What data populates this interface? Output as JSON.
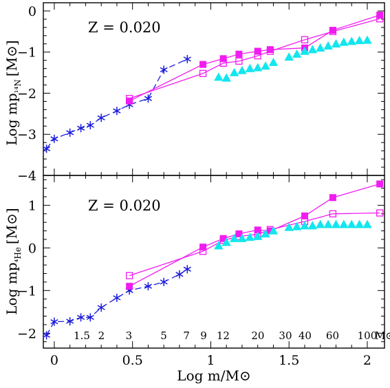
{
  "chart_data": [
    {
      "type": "line",
      "panel": "top",
      "annotation": "Z = 0.020",
      "ylabel": "Log mp",
      "ylabel_sub": "¹⁴N",
      "ylabel_unit": "[M⊙]",
      "xlim": [
        -0.07,
        2.11
      ],
      "ylim": [
        -4,
        0.2
      ],
      "yticks": [
        {
          "v": 0,
          "label": "0"
        },
        {
          "v": -1,
          "label": "−1"
        },
        {
          "v": -2,
          "label": "−2"
        },
        {
          "v": -3,
          "label": "−3"
        },
        {
          "v": -4,
          "label": "−4"
        }
      ],
      "series": [
        {
          "marker": "asterisk",
          "color": "#1a1adb",
          "dash": true,
          "points": [
            [
              -0.05,
              -3.35
            ],
            [
              0.0,
              -3.11
            ],
            [
              0.1,
              -2.96
            ],
            [
              0.17,
              -2.85
            ],
            [
              0.23,
              -2.78
            ],
            [
              0.3,
              -2.6
            ],
            [
              0.4,
              -2.43
            ],
            [
              0.48,
              -2.28
            ],
            [
              0.6,
              -2.13
            ],
            [
              0.7,
              -1.43
            ],
            [
              0.85,
              -1.17
            ]
          ]
        },
        {
          "marker": "square-filled",
          "color": "#f11cf1",
          "dash": false,
          "points": [
            [
              0.48,
              -2.19
            ],
            [
              0.95,
              -1.3
            ],
            [
              1.08,
              -1.16
            ],
            [
              1.18,
              -1.05
            ],
            [
              1.3,
              -0.98
            ],
            [
              1.38,
              -0.94
            ],
            [
              1.6,
              -0.9
            ],
            [
              1.78,
              -0.47
            ],
            [
              2.08,
              -0.1
            ]
          ]
        },
        {
          "marker": "square-open",
          "color": "#f11cf1",
          "dash": false,
          "points": [
            [
              0.48,
              -2.13
            ],
            [
              0.95,
              -1.52
            ],
            [
              1.08,
              -1.27
            ],
            [
              1.18,
              -1.22
            ],
            [
              1.3,
              -1.09
            ],
            [
              1.38,
              -0.98
            ],
            [
              1.6,
              -0.7
            ],
            [
              1.78,
              -0.5
            ],
            [
              2.08,
              -0.19
            ]
          ]
        },
        {
          "marker": "triangle-filled",
          "color": "#12e6ee",
          "dash": false,
          "points": [
            [
              1.05,
              -1.61
            ],
            [
              1.1,
              -1.63
            ],
            [
              1.15,
              -1.5
            ],
            [
              1.2,
              -1.45
            ],
            [
              1.25,
              -1.4
            ],
            [
              1.3,
              -1.38
            ],
            [
              1.35,
              -1.34
            ],
            [
              1.4,
              -1.25
            ],
            [
              1.5,
              -1.12
            ],
            [
              1.55,
              -1.05
            ],
            [
              1.6,
              -0.98
            ],
            [
              1.65,
              -0.94
            ],
            [
              1.7,
              -0.9
            ],
            [
              1.75,
              -0.85
            ],
            [
              1.8,
              -0.8
            ],
            [
              1.85,
              -0.76
            ],
            [
              1.9,
              -0.74
            ],
            [
              1.95,
              -0.72
            ],
            [
              2.0,
              -0.71
            ]
          ]
        }
      ]
    },
    {
      "type": "line",
      "panel": "bottom",
      "annotation": "Z = 0.020",
      "ylabel": "Log mp",
      "ylabel_sub": "⁴He",
      "ylabel_unit": "[M⊙]",
      "xlabel": "Log m/M⊙",
      "xlim": [
        -0.07,
        2.11
      ],
      "ylim": [
        -2.35,
        1.7
      ],
      "yticks": [
        {
          "v": 1,
          "label": "1"
        },
        {
          "v": 0,
          "label": "0"
        },
        {
          "v": -1,
          "label": "−1"
        },
        {
          "v": -2,
          "label": "−2"
        }
      ],
      "xticks": [
        {
          "v": 0,
          "label": "0"
        },
        {
          "v": 0.5,
          "label": "0.5"
        },
        {
          "v": 1,
          "label": "1"
        },
        {
          "v": 1.5,
          "label": "1.5"
        },
        {
          "v": 2,
          "label": "2"
        }
      ],
      "mass_labels": [
        {
          "v": 0.176,
          "label": "1.5"
        },
        {
          "v": 0.301,
          "label": "2"
        },
        {
          "v": 0.477,
          "label": "3"
        },
        {
          "v": 0.699,
          "label": "5"
        },
        {
          "v": 0.845,
          "label": "7"
        },
        {
          "v": 0.954,
          "label": "9"
        },
        {
          "v": 1.079,
          "label": "12"
        },
        {
          "v": 1.301,
          "label": "20"
        },
        {
          "v": 1.477,
          "label": "30"
        },
        {
          "v": 1.602,
          "label": "40"
        },
        {
          "v": 1.778,
          "label": "60"
        },
        {
          "v": 2.0,
          "label": "100"
        },
        {
          "v": 2.11,
          "label": "M⊙"
        }
      ],
      "series": [
        {
          "marker": "asterisk",
          "color": "#1a1adb",
          "dash": true,
          "points": [
            [
              -0.05,
              -2.05
            ],
            [
              0.0,
              -1.73
            ],
            [
              0.1,
              -1.72
            ],
            [
              0.17,
              -1.63
            ],
            [
              0.23,
              -1.63
            ],
            [
              0.3,
              -1.4
            ],
            [
              0.4,
              -1.17
            ],
            [
              0.48,
              -1.0
            ],
            [
              0.6,
              -0.9
            ],
            [
              0.7,
              -0.8
            ],
            [
              0.8,
              -0.62
            ],
            [
              0.85,
              -0.5
            ]
          ]
        },
        {
          "marker": "square-filled",
          "color": "#f11cf1",
          "dash": false,
          "points": [
            [
              0.48,
              -0.9
            ],
            [
              0.95,
              0.02
            ],
            [
              1.08,
              0.22
            ],
            [
              1.18,
              0.33
            ],
            [
              1.3,
              0.42
            ],
            [
              1.38,
              0.4
            ],
            [
              1.6,
              0.75
            ],
            [
              1.78,
              1.18
            ],
            [
              2.08,
              1.5
            ]
          ]
        },
        {
          "marker": "square-open",
          "color": "#f11cf1",
          "dash": false,
          "points": [
            [
              0.48,
              -0.65
            ],
            [
              0.95,
              -0.08
            ],
            [
              1.08,
              0.18
            ],
            [
              1.18,
              0.27
            ],
            [
              1.3,
              0.32
            ],
            [
              1.38,
              0.43
            ],
            [
              1.6,
              0.62
            ],
            [
              1.78,
              0.8
            ],
            [
              2.08,
              0.82
            ]
          ]
        },
        {
          "marker": "triangle-filled",
          "color": "#12e6ee",
          "dash": false,
          "points": [
            [
              1.05,
              0.05
            ],
            [
              1.1,
              0.13
            ],
            [
              1.15,
              0.22
            ],
            [
              1.2,
              0.22
            ],
            [
              1.25,
              0.25
            ],
            [
              1.3,
              0.27
            ],
            [
              1.35,
              0.33
            ],
            [
              1.4,
              0.4
            ],
            [
              1.5,
              0.48
            ],
            [
              1.55,
              0.5
            ],
            [
              1.6,
              0.52
            ],
            [
              1.65,
              0.52
            ],
            [
              1.7,
              0.55
            ],
            [
              1.75,
              0.55
            ],
            [
              1.8,
              0.55
            ],
            [
              1.85,
              0.55
            ],
            [
              1.9,
              0.55
            ],
            [
              1.95,
              0.55
            ],
            [
              2.0,
              0.55
            ]
          ]
        }
      ]
    }
  ]
}
